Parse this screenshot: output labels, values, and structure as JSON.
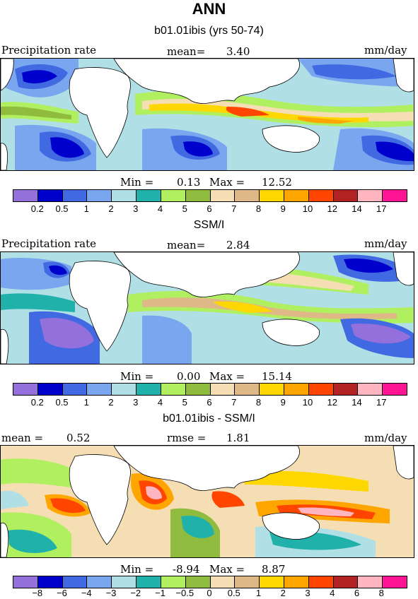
{
  "figure_title": "ANN",
  "panels": [
    {
      "subtitle": "b01.01ibis (yrs 50-74)",
      "left_label": "Precipitation rate",
      "stat_label": "mean=",
      "stat_value": "3.40",
      "right_label": "",
      "units": "mm/day",
      "min_label": "Min =",
      "min_value": "0.13",
      "max_label": "Max =",
      "max_value": "12.52"
    },
    {
      "subtitle": "SSM/I",
      "left_label": "Precipitation rate",
      "stat_label": "mean=",
      "stat_value": "2.84",
      "right_label": "",
      "units": "mm/day",
      "min_label": "Min =",
      "min_value": "0.00",
      "max_label": "Max =",
      "max_value": "15.14"
    },
    {
      "subtitle": "b01.01ibis - SSM/I",
      "left_label": "mean =",
      "stat_label": "rmse =",
      "stat_value": "1.81",
      "mean_value": "0.52",
      "units": "mm/day",
      "min_label": "Min =",
      "min_value": "-8.94",
      "max_label": "Max =",
      "max_value": "8.87"
    }
  ],
  "colorbar_abs": {
    "colors": [
      "#9370db",
      "#0000cd",
      "#4169e1",
      "#7aa6f0",
      "#b0e0e6",
      "#20b2aa",
      "#b0f060",
      "#8fbc3f",
      "#f5deb3",
      "#deb887",
      "#ffd700",
      "#ffa500",
      "#ff4500",
      "#b22222",
      "#ffb6c1",
      "#ff1493"
    ],
    "ticks": [
      "0.2",
      "0.5",
      "1",
      "2",
      "3",
      "4",
      "5",
      "6",
      "7",
      "8",
      "9",
      "10",
      "12",
      "14",
      "17"
    ]
  },
  "colorbar_diff": {
    "colors": [
      "#9370db",
      "#0000cd",
      "#4169e1",
      "#7aa6f0",
      "#b0e0e6",
      "#20b2aa",
      "#b0f060",
      "#8fbc3f",
      "#f5deb3",
      "#deb887",
      "#ffd700",
      "#ffa500",
      "#ff4500",
      "#b22222",
      "#ffb6c1",
      "#ff1493"
    ],
    "ticks": [
      "−8",
      "−6",
      "−4",
      "−3",
      "−2",
      "−1",
      "−0.5",
      "0",
      "0.5",
      "1",
      "2",
      "3",
      "4",
      "6",
      "8"
    ]
  }
}
